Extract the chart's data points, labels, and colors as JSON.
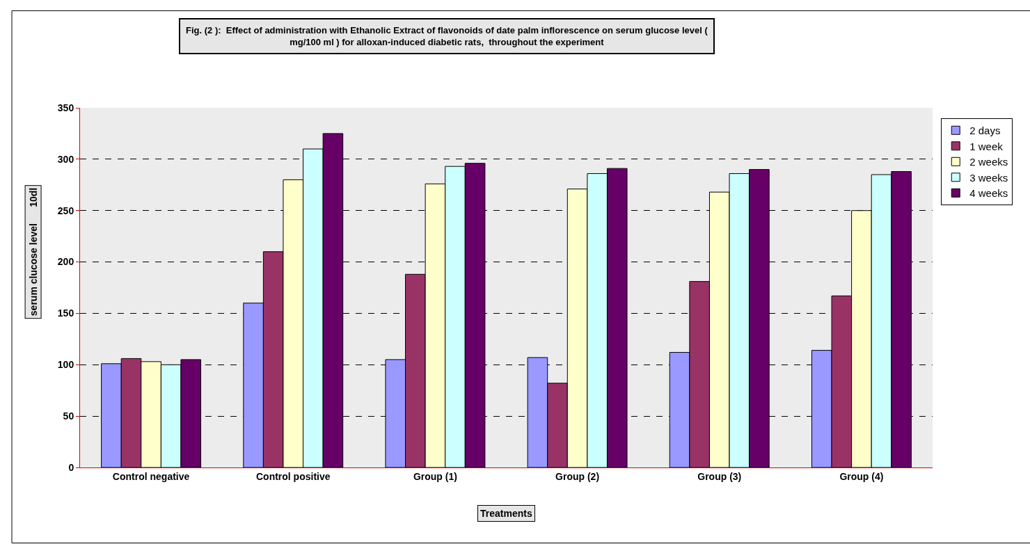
{
  "chart_data": {
    "type": "bar",
    "title": "Fig. (2 ):  Effect of administration with Ethanolic Extract of flavonoids of date palm inflorescence on serum glucose level (\nmg/100 ml ) for alloxan-induced diabetic rats,  throughout the experiment",
    "xlabel": "Treatments",
    "ylabel": "serum clucose level      10dl",
    "categories": [
      "Control negative",
      "Control positive",
      "Group (1)",
      "Group (2)",
      "Group (3)",
      "Group (4)"
    ],
    "series": [
      {
        "name": "2 days",
        "color": "#9999ff",
        "values": [
          101,
          160,
          105,
          107,
          112,
          114
        ]
      },
      {
        "name": "1 week",
        "color": "#993366",
        "values": [
          106,
          210,
          188,
          82,
          181,
          167
        ]
      },
      {
        "name": "2 weeks",
        "color": "#ffffcc",
        "values": [
          103,
          280,
          276,
          271,
          268,
          250
        ]
      },
      {
        "name": "3 weeks",
        "color": "#ccffff",
        "values": [
          100,
          310,
          293,
          286,
          286,
          285
        ]
      },
      {
        "name": "4 weeks",
        "color": "#660066",
        "values": [
          105,
          325,
          296,
          291,
          290,
          288
        ]
      }
    ],
    "ylim": [
      0,
      350
    ],
    "yticks": [
      0,
      50,
      100,
      150,
      200,
      250,
      300,
      350
    ],
    "grid": "y",
    "legend": "right"
  }
}
